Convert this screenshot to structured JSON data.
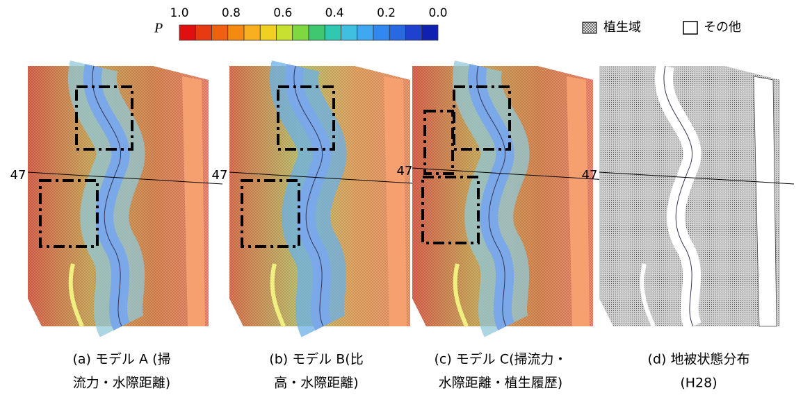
{
  "colorbar": {
    "label": "P",
    "ticks": [
      "1.0",
      "0.8",
      "0.6",
      "0.4",
      "0.2",
      "0.0"
    ]
  },
  "legend": {
    "vegetation": "植生域",
    "other": "その他"
  },
  "panels": [
    {
      "section": "47",
      "caption": [
        "(a) モデル A (掃",
        "流力・水際距離)"
      ]
    },
    {
      "section": "47",
      "caption": [
        "(b) モデル B(比",
        "高・水際距離)"
      ]
    },
    {
      "section": "47",
      "caption": [
        "(c) モデル C(掃流力・",
        "水際距離・植生履歴)"
      ]
    },
    {
      "section": "47",
      "caption": [
        "(d) 地被状態分布",
        "(H28)"
      ]
    }
  ]
}
